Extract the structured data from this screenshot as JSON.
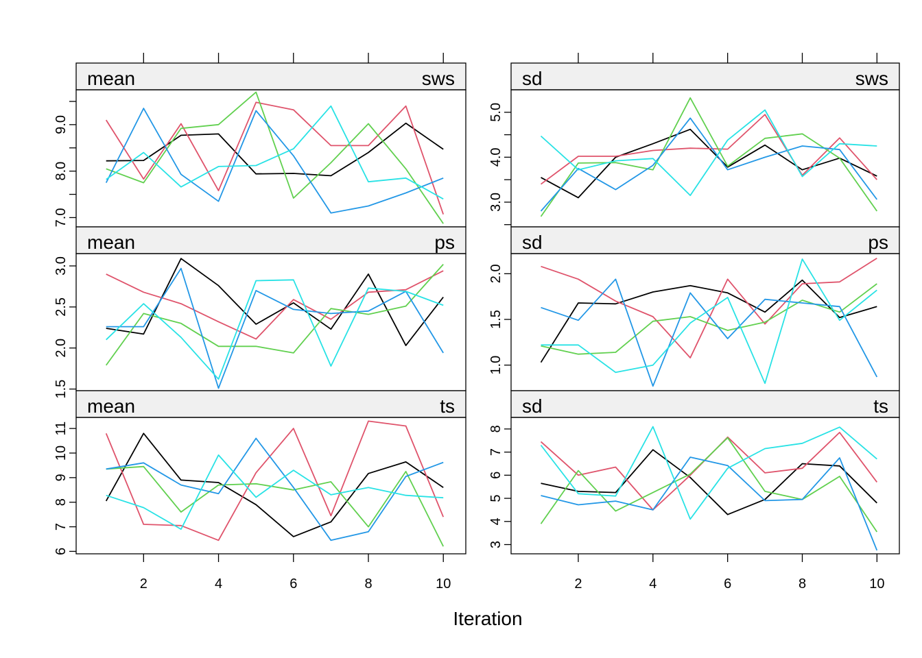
{
  "chart_data": {
    "type": "line",
    "xlabel": "Iteration",
    "x": [
      1,
      2,
      3,
      4,
      5,
      6,
      7,
      8,
      9,
      10
    ],
    "x_ticks": [
      "2",
      "4",
      "6",
      "8",
      "10"
    ],
    "xlim": [
      0.2,
      10.6
    ],
    "series_colors": [
      "#000000",
      "#DF536B",
      "#61D04F",
      "#2297E6",
      "#28E2E5"
    ],
    "panels": [
      {
        "stat": "mean",
        "var": "sws",
        "ylim": [
          6.8,
          9.75
        ],
        "y_ticks": [
          "7.0",
          "8.0",
          "9.0"
        ],
        "y_tick_values": [
          7.0,
          8.0,
          9.0
        ],
        "y_tick_marks": [
          7.0,
          7.5,
          8.0,
          8.5,
          9.0,
          9.5
        ],
        "series": [
          {
            "values": [
              8.22,
              8.23,
              8.77,
              8.8,
              7.94,
              7.95,
              7.9,
              8.4,
              9.03,
              8.47
            ]
          },
          {
            "values": [
              9.1,
              7.83,
              9.02,
              7.58,
              9.48,
              9.32,
              8.55,
              8.55,
              9.4,
              7.07
            ]
          },
          {
            "values": [
              8.05,
              7.75,
              8.92,
              9.0,
              9.7,
              7.42,
              8.18,
              9.02,
              8.05,
              6.87
            ]
          },
          {
            "values": [
              7.75,
              9.35,
              7.93,
              7.35,
              9.3,
              8.33,
              7.1,
              7.25,
              7.53,
              7.85
            ]
          },
          {
            "values": [
              7.82,
              8.4,
              7.66,
              8.1,
              8.12,
              8.48,
              9.4,
              7.77,
              7.85,
              7.4
            ]
          }
        ]
      },
      {
        "stat": "sd",
        "var": "sws",
        "ylim": [
          2.45,
          5.5
        ],
        "y_ticks": [
          "3.0",
          "4.0",
          "5.0"
        ],
        "y_tick_values": [
          3.0,
          4.0,
          5.0
        ],
        "y_tick_marks": [
          2.5,
          3.0,
          3.5,
          4.0,
          4.5,
          5.0
        ],
        "series": [
          {
            "values": [
              3.55,
              3.1,
              4.0,
              4.3,
              4.62,
              3.78,
              4.27,
              3.72,
              3.98,
              3.58
            ]
          },
          {
            "values": [
              3.4,
              4.02,
              4.02,
              4.15,
              4.2,
              4.18,
              4.95,
              3.6,
              4.43,
              3.5
            ]
          },
          {
            "values": [
              2.68,
              3.87,
              3.88,
              3.72,
              5.32,
              3.8,
              4.42,
              4.52,
              3.98,
              2.8
            ]
          },
          {
            "values": [
              2.8,
              3.75,
              3.28,
              3.82,
              4.87,
              3.72,
              4.0,
              4.25,
              4.17,
              3.06
            ]
          },
          {
            "values": [
              4.47,
              3.72,
              3.92,
              3.97,
              3.15,
              4.38,
              5.05,
              3.57,
              4.3,
              4.25
            ]
          }
        ]
      },
      {
        "stat": "mean",
        "var": "ps",
        "ylim": [
          1.48,
          3.15
        ],
        "y_ticks": [
          "1.5",
          "2.0",
          "2.5",
          "3.0"
        ],
        "y_tick_values": [
          1.5,
          2.0,
          2.5,
          3.0
        ],
        "y_tick_marks": [
          1.5,
          2.0,
          2.5,
          3.0
        ],
        "series": [
          {
            "values": [
              2.24,
              2.17,
              3.09,
              2.76,
              2.29,
              2.55,
              2.23,
              2.9,
              2.03,
              2.62
            ]
          },
          {
            "values": [
              2.9,
              2.68,
              2.54,
              2.32,
              2.11,
              2.59,
              2.35,
              2.68,
              2.71,
              2.94
            ]
          },
          {
            "values": [
              1.79,
              2.42,
              2.3,
              2.02,
              2.02,
              1.94,
              2.48,
              2.41,
              2.51,
              3.02
            ]
          },
          {
            "values": [
              2.26,
              2.26,
              2.97,
              1.51,
              2.7,
              2.47,
              2.42,
              2.45,
              2.69,
              1.94
            ]
          },
          {
            "values": [
              2.1,
              2.54,
              2.13,
              1.62,
              2.82,
              2.83,
              1.78,
              2.73,
              2.69,
              2.52
            ]
          }
        ]
      },
      {
        "stat": "sd",
        "var": "ps",
        "ylim": [
          0.72,
          2.22
        ],
        "y_ticks": [
          "1.0",
          "1.5",
          "2.0"
        ],
        "y_tick_values": [
          1.0,
          1.5,
          2.0
        ],
        "y_tick_marks": [
          1.0,
          1.5,
          2.0
        ],
        "series": [
          {
            "values": [
              1.03,
              1.68,
              1.67,
              1.8,
              1.87,
              1.79,
              1.58,
              1.93,
              1.52,
              1.64
            ]
          },
          {
            "values": [
              2.08,
              1.94,
              1.7,
              1.53,
              1.08,
              1.94,
              1.45,
              1.89,
              1.91,
              2.17
            ]
          },
          {
            "values": [
              1.21,
              1.12,
              1.14,
              1.48,
              1.53,
              1.38,
              1.47,
              1.71,
              1.58,
              1.89
            ]
          },
          {
            "values": [
              1.63,
              1.49,
              1.94,
              0.77,
              1.79,
              1.29,
              1.72,
              1.68,
              1.64,
              0.87
            ]
          },
          {
            "values": [
              1.22,
              1.22,
              0.92,
              1.0,
              1.46,
              1.74,
              0.8,
              2.16,
              1.49,
              1.82
            ]
          }
        ]
      },
      {
        "stat": "mean",
        "var": "ts",
        "ylim": [
          5.9,
          11.45
        ],
        "y_ticks": [
          "6",
          "7",
          "8",
          "9",
          "10",
          "11"
        ],
        "y_tick_values": [
          6,
          7,
          8,
          9,
          10,
          11
        ],
        "y_tick_marks": [
          6,
          7,
          8,
          9,
          10,
          11
        ],
        "series": [
          {
            "values": [
              8.05,
              10.8,
              8.9,
              8.8,
              7.9,
              6.6,
              7.2,
              9.17,
              9.64,
              8.6
            ]
          },
          {
            "values": [
              10.8,
              7.1,
              7.05,
              6.45,
              9.2,
              11.0,
              7.45,
              11.3,
              11.1,
              7.4
            ]
          },
          {
            "values": [
              9.35,
              9.45,
              7.6,
              8.7,
              8.75,
              8.5,
              8.83,
              7.0,
              9.25,
              6.2
            ]
          },
          {
            "values": [
              9.35,
              9.6,
              8.7,
              8.35,
              10.6,
              8.6,
              6.45,
              6.8,
              9.05,
              9.62
            ]
          },
          {
            "values": [
              8.28,
              7.78,
              6.9,
              9.92,
              8.2,
              9.3,
              8.3,
              8.6,
              8.28,
              8.18
            ]
          }
        ]
      },
      {
        "stat": "sd",
        "var": "ts",
        "ylim": [
          2.6,
          8.5
        ],
        "y_ticks": [
          "3",
          "4",
          "5",
          "6",
          "7",
          "8"
        ],
        "y_tick_values": [
          3,
          4,
          5,
          6,
          7,
          8
        ],
        "y_tick_marks": [
          3,
          4,
          5,
          6,
          7,
          8
        ],
        "series": [
          {
            "values": [
              5.65,
              5.3,
              5.25,
              7.1,
              5.9,
              4.3,
              4.95,
              6.5,
              6.4,
              4.8
            ]
          },
          {
            "values": [
              7.45,
              6.0,
              6.35,
              4.5,
              6.0,
              7.65,
              6.1,
              6.3,
              7.85,
              5.7
            ]
          },
          {
            "values": [
              3.9,
              6.2,
              4.45,
              5.25,
              6.05,
              7.62,
              5.3,
              4.95,
              5.95,
              3.55
            ]
          },
          {
            "values": [
              5.12,
              4.72,
              4.88,
              4.5,
              6.78,
              6.42,
              4.9,
              4.95,
              6.75,
              2.75
            ]
          },
          {
            "values": [
              7.3,
              5.2,
              5.1,
              8.1,
              4.1,
              6.3,
              7.15,
              7.38,
              8.08,
              6.7
            ]
          }
        ]
      }
    ]
  }
}
